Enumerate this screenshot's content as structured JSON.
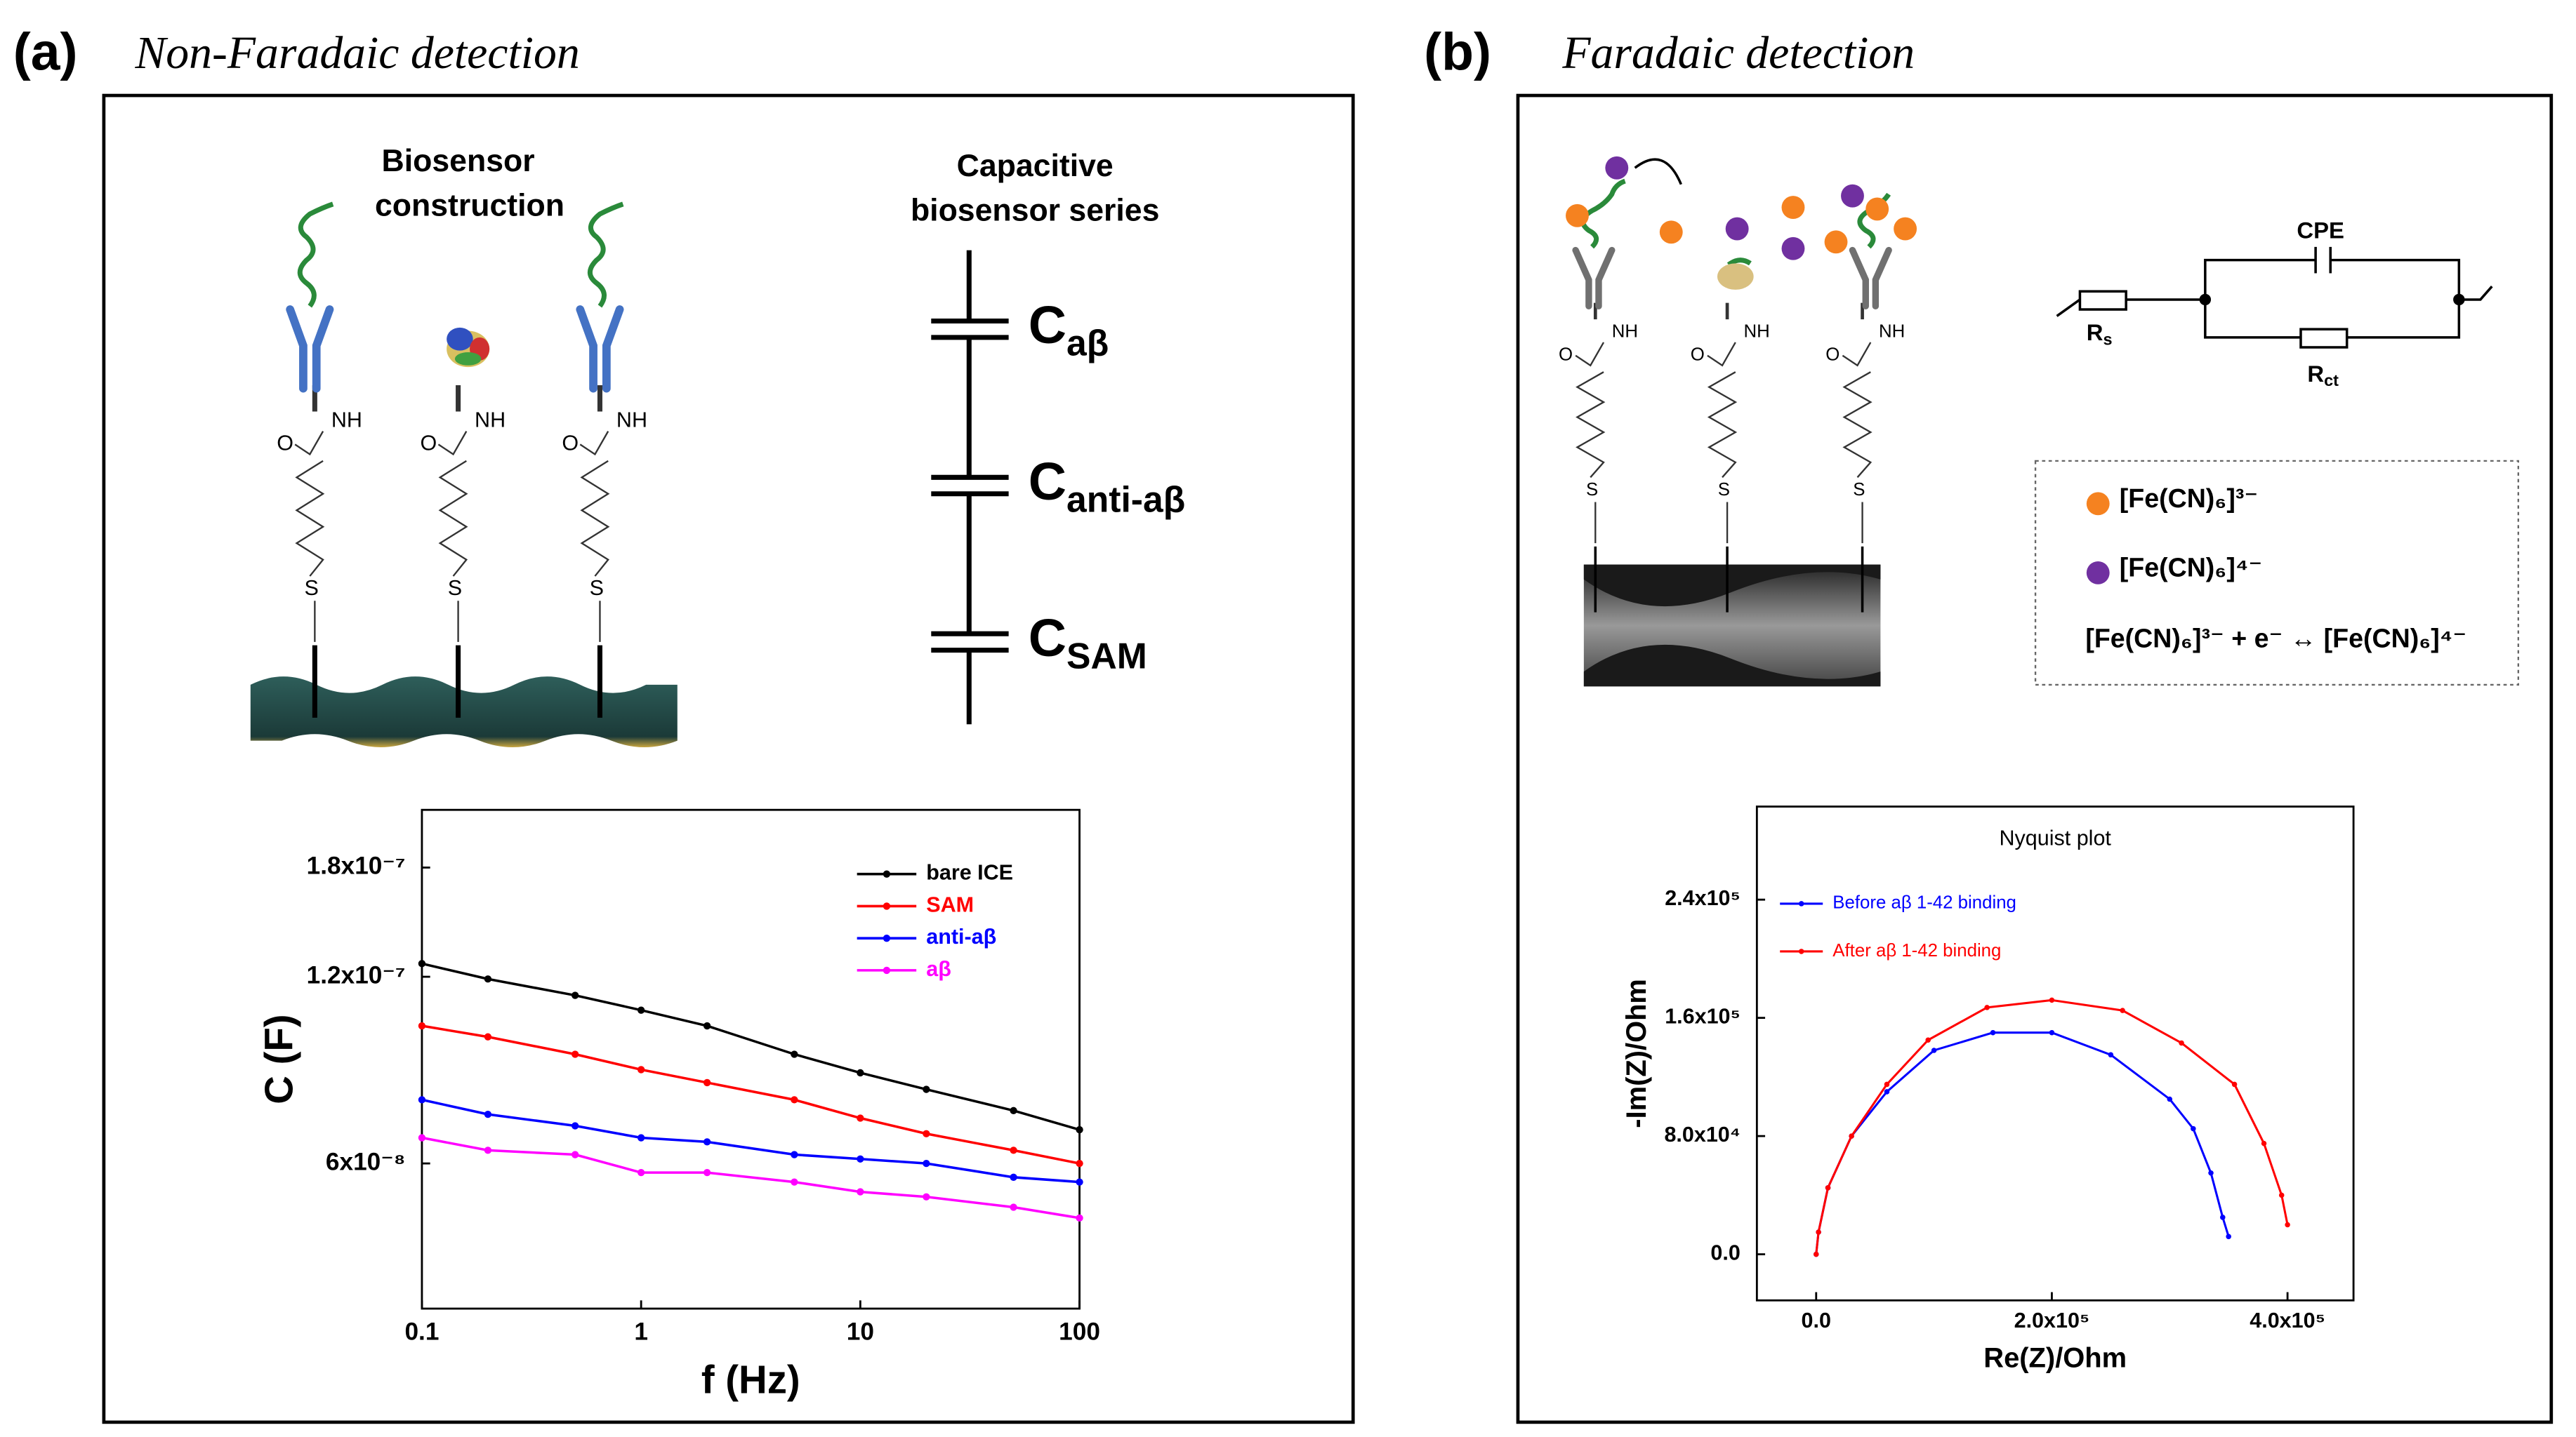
{
  "panel_a": {
    "label": "(a)",
    "title": "Non-Faradaic detection",
    "diagram_title": [
      "Biosensor",
      "construction"
    ],
    "series_title": [
      "Capacitive",
      "biosensor series"
    ],
    "capacitors": [
      {
        "symbol": "C",
        "subscript": "aβ"
      },
      {
        "symbol": "C",
        "subscript": "anti-aβ"
      },
      {
        "symbol": "C",
        "subscript": "SAM"
      }
    ]
  },
  "molecule_labels": {
    "amide": "NH",
    "oxygen": "O",
    "sulfur": "S"
  },
  "panel_b": {
    "label": "(b)",
    "title": "Faradaic detection",
    "circuit": {
      "cpe": "CPE",
      "rs": {
        "symbol": "R",
        "subscript": "s"
      },
      "rct": {
        "symbol": "R",
        "subscript": "ct"
      }
    },
    "legend": [
      "[Fe(CN)₆]³⁻",
      "[Fe(CN)₆]⁴⁻"
    ],
    "equation": "[Fe(CN)₆]³⁻ + e⁻ ↔ [Fe(CN)₆]⁴⁻"
  },
  "chart_data": [
    {
      "type": "line",
      "xlabel": "f (Hz)",
      "ylabel": "C (F)",
      "xscale": "log",
      "yscale": "log",
      "x": [
        0.1,
        0.2,
        0.5,
        1,
        2,
        5,
        10,
        20,
        50,
        100
      ],
      "xlim": [
        0.1,
        100
      ],
      "ylim": [
        3.5e-08,
        2.23e-07
      ],
      "xticks": [
        0.1,
        1,
        10,
        100
      ],
      "yticks": [
        {
          "value": 6e-08,
          "label": "6x10⁻⁸"
        },
        {
          "value": 1.2e-07,
          "label": "1.2x10⁻⁷"
        },
        {
          "value": 1.8e-07,
          "label": "1.8x10⁻⁷"
        }
      ],
      "legend": "upper right",
      "series": [
        {
          "name": "bare ICE",
          "color": "#000000",
          "values": [
            1.26e-07,
            1.19e-07,
            1.12e-07,
            1.06e-07,
            1e-07,
            9e-08,
            8.4e-08,
            7.9e-08,
            7.3e-08,
            6.8e-08
          ]
        },
        {
          "name": "SAM",
          "color": "#ff0000",
          "values": [
            1e-07,
            9.6e-08,
            9e-08,
            8.5e-08,
            8.1e-08,
            7.6e-08,
            7.1e-08,
            6.7e-08,
            6.3e-08,
            6e-08
          ]
        },
        {
          "name": "anti-aβ",
          "color": "#0000ff",
          "values": [
            7.6e-08,
            7.2e-08,
            6.9e-08,
            6.6e-08,
            6.5e-08,
            6.2e-08,
            6.1e-08,
            6e-08,
            5.7e-08,
            5.6e-08
          ]
        },
        {
          "name": "aβ",
          "color": "#ff00ff",
          "values": [
            6.6e-08,
            6.3e-08,
            6.2e-08,
            5.8e-08,
            5.8e-08,
            5.6e-08,
            5.4e-08,
            5.3e-08,
            5.1e-08,
            4.9e-08
          ]
        }
      ]
    },
    {
      "type": "scatter",
      "title": "Nyquist plot",
      "xlabel": "Re(Z)/Ohm",
      "ylabel": "-Im(Z)/Ohm",
      "xlim": [
        -50300,
        456000
      ],
      "ylim": [
        -31200,
        303000
      ],
      "xticks": [
        {
          "value": 0,
          "label": "0.0"
        },
        {
          "value": 200000,
          "label": "2.0x10⁵"
        },
        {
          "value": 400000,
          "label": "4.0x10⁵"
        }
      ],
      "yticks": [
        {
          "value": 0,
          "label": "0.0"
        },
        {
          "value": 80000,
          "label": "8.0x10⁴"
        },
        {
          "value": 160000,
          "label": "1.6x10⁵"
        },
        {
          "value": 240000,
          "label": "2.4x10⁵"
        }
      ],
      "legend": "upper left",
      "series": [
        {
          "name": "Before aβ 1-42 binding",
          "color": "#0000ff",
          "x": [
            0,
            2000,
            10000,
            30000,
            60000,
            100000,
            150000,
            200000,
            250000,
            300000,
            320000,
            335000,
            345000,
            350000
          ],
          "values": [
            0,
            15000,
            45000,
            80000,
            110000,
            138000,
            150000,
            150000,
            135000,
            105000,
            85000,
            55000,
            25000,
            12000
          ]
        },
        {
          "name": "After aβ 1-42 binding",
          "color": "#ff0000",
          "x": [
            0,
            2000,
            10000,
            30000,
            60000,
            95000,
            145000,
            200000,
            260000,
            310000,
            355000,
            380000,
            395000,
            400000
          ],
          "values": [
            0,
            15000,
            45000,
            80000,
            115000,
            145000,
            167000,
            172000,
            165000,
            143000,
            115000,
            75000,
            40000,
            20000
          ]
        }
      ]
    }
  ]
}
